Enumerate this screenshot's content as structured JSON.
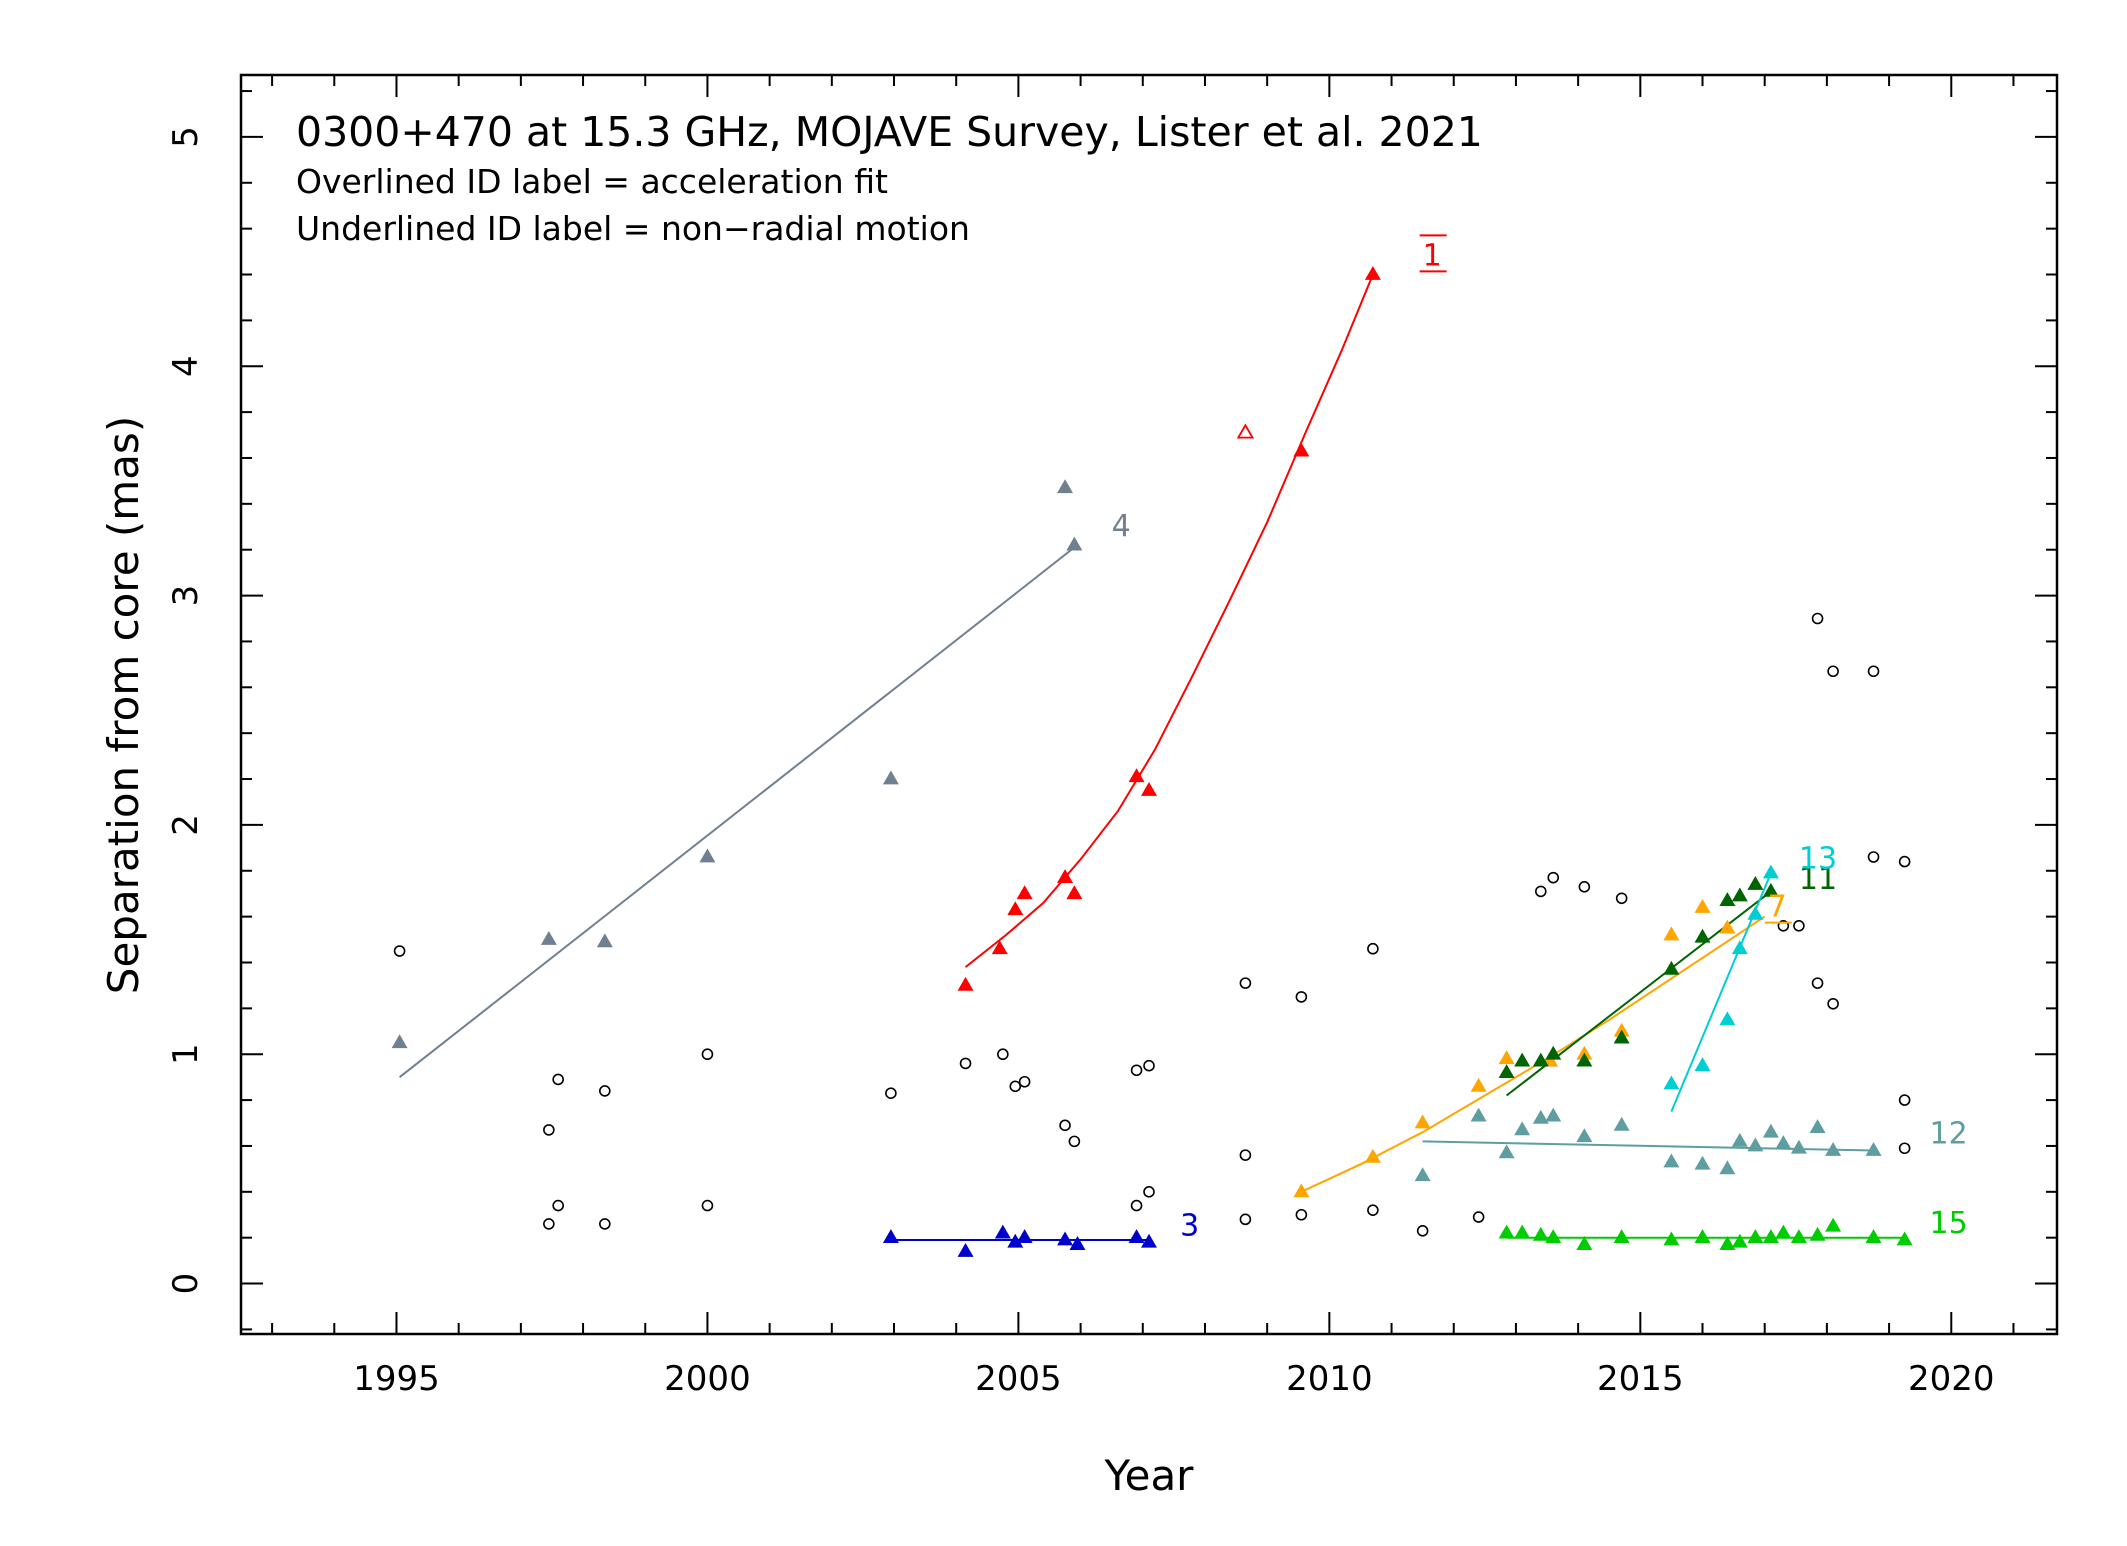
{
  "chart_data": {
    "type": "scatter",
    "title": "0300+470 at 15.3 GHz, MOJAVE Survey, Lister et al. 2021",
    "notes": [
      "Overlined ID label = acceleration fit",
      "Underlined ID label = non−radial motion"
    ],
    "xlabel": "Year",
    "ylabel": "Separation from core (mas)",
    "xlim": [
      1992.5,
      2021.7
    ],
    "ylim": [
      -0.22,
      5.27
    ],
    "xticks": [
      1995,
      2000,
      2005,
      2010,
      2015,
      2020
    ],
    "xtick_labels": [
      "1995",
      "2000",
      "2005",
      "2010",
      "2015",
      "2020"
    ],
    "yticks": [
      0,
      1,
      2,
      3,
      4,
      5
    ],
    "ytick_labels": [
      "0",
      "1",
      "2",
      "3",
      "4",
      "5"
    ],
    "grid": false,
    "series": [
      {
        "name": "1",
        "color": "#ff0000",
        "overline": true,
        "underline": true,
        "label_pos": [
          2011.5,
          4.44
        ],
        "points": [
          [
            2004.15,
            1.3
          ],
          [
            2004.7,
            1.46
          ],
          [
            2004.95,
            1.63
          ],
          [
            2005.1,
            1.7
          ],
          [
            2005.75,
            1.77
          ],
          [
            2005.9,
            1.7
          ],
          [
            2006.9,
            2.21
          ],
          [
            2007.1,
            2.15
          ],
          [
            2009.55,
            3.63
          ],
          [
            2010.7,
            4.4
          ]
        ],
        "open_points": [
          [
            2008.65,
            3.71
          ]
        ],
        "fit": [
          [
            2004.15,
            1.38
          ],
          [
            2004.8,
            1.52
          ],
          [
            2005.4,
            1.66
          ],
          [
            2006.0,
            1.85
          ],
          [
            2006.6,
            2.06
          ],
          [
            2007.2,
            2.33
          ],
          [
            2007.8,
            2.65
          ],
          [
            2008.4,
            2.98
          ],
          [
            2009.0,
            3.32
          ],
          [
            2009.6,
            3.7
          ],
          [
            2010.2,
            4.07
          ],
          [
            2010.7,
            4.4
          ]
        ]
      },
      {
        "name": "3",
        "color": "#0000cc",
        "label_pos": [
          2007.6,
          0.21
        ],
        "points": [
          [
            2002.95,
            0.2
          ],
          [
            2004.15,
            0.14
          ],
          [
            2004.75,
            0.22
          ],
          [
            2004.95,
            0.18
          ],
          [
            2005.1,
            0.2
          ],
          [
            2005.75,
            0.19
          ],
          [
            2005.95,
            0.17
          ],
          [
            2006.9,
            0.2
          ],
          [
            2007.1,
            0.18
          ]
        ],
        "fit": [
          [
            2002.95,
            0.19
          ],
          [
            2007.1,
            0.19
          ]
        ]
      },
      {
        "name": "4",
        "color": "#708090",
        "label_pos": [
          2006.5,
          3.26
        ],
        "points": [
          [
            1995.05,
            1.05
          ],
          [
            1997.45,
            1.5
          ],
          [
            1998.35,
            1.49
          ],
          [
            2000.0,
            1.86
          ],
          [
            2002.95,
            2.2
          ],
          [
            2005.75,
            3.47
          ],
          [
            2005.9,
            3.22
          ]
        ],
        "fit": [
          [
            1995.05,
            0.9
          ],
          [
            2005.9,
            3.21
          ]
        ]
      },
      {
        "name": "7",
        "color": "#ffa500",
        "underline": true,
        "label_pos": [
          2017.05,
          1.6
        ],
        "points": [
          [
            2009.55,
            0.4
          ],
          [
            2010.7,
            0.55
          ],
          [
            2011.5,
            0.7
          ],
          [
            2012.4,
            0.86
          ],
          [
            2012.85,
            0.98
          ],
          [
            2013.55,
            0.97
          ],
          [
            2014.1,
            1.0
          ],
          [
            2014.7,
            1.1
          ],
          [
            2015.5,
            1.52
          ],
          [
            2016.0,
            1.64
          ],
          [
            2016.4,
            1.55
          ]
        ],
        "fit": [
          [
            2009.55,
            0.4
          ],
          [
            2010.5,
            0.52
          ],
          [
            2011.5,
            0.66
          ],
          [
            2012.5,
            0.82
          ],
          [
            2013.5,
            0.98
          ],
          [
            2014.5,
            1.15
          ],
          [
            2015.5,
            1.33
          ],
          [
            2016.5,
            1.51
          ],
          [
            2017.0,
            1.6
          ]
        ]
      },
      {
        "name": "11",
        "color": "#006400",
        "label_pos": [
          2017.55,
          1.72
        ],
        "points": [
          [
            2012.85,
            0.92
          ],
          [
            2013.1,
            0.97
          ],
          [
            2013.4,
            0.97
          ],
          [
            2013.6,
            1.0
          ],
          [
            2014.1,
            0.97
          ],
          [
            2014.7,
            1.07
          ],
          [
            2015.5,
            1.37
          ],
          [
            2016.0,
            1.51
          ],
          [
            2016.4,
            1.67
          ],
          [
            2016.6,
            1.69
          ],
          [
            2016.85,
            1.74
          ],
          [
            2017.1,
            1.71
          ]
        ],
        "fit": [
          [
            2012.85,
            0.82
          ],
          [
            2017.1,
            1.71
          ]
        ]
      },
      {
        "name": "12",
        "color": "#5f9ea0",
        "label_pos": [
          2019.65,
          0.61
        ],
        "points": [
          [
            2011.5,
            0.47
          ],
          [
            2012.4,
            0.73
          ],
          [
            2012.85,
            0.57
          ],
          [
            2013.1,
            0.67
          ],
          [
            2013.4,
            0.72
          ],
          [
            2013.6,
            0.73
          ],
          [
            2014.1,
            0.64
          ],
          [
            2014.7,
            0.69
          ],
          [
            2015.5,
            0.53
          ],
          [
            2016.0,
            0.52
          ],
          [
            2016.4,
            0.5
          ],
          [
            2016.6,
            0.62
          ],
          [
            2016.85,
            0.6
          ],
          [
            2017.1,
            0.66
          ],
          [
            2017.3,
            0.61
          ],
          [
            2017.55,
            0.59
          ],
          [
            2017.85,
            0.68
          ],
          [
            2018.1,
            0.58
          ],
          [
            2018.75,
            0.58
          ]
        ],
        "fit": [
          [
            2011.5,
            0.62
          ],
          [
            2018.75,
            0.58
          ]
        ]
      },
      {
        "name": "13",
        "color": "#00ced1",
        "label_pos": [
          2017.55,
          1.81
        ],
        "points": [
          [
            2015.5,
            0.87
          ],
          [
            2016.0,
            0.95
          ],
          [
            2016.4,
            1.15
          ],
          [
            2016.6,
            1.46
          ],
          [
            2016.85,
            1.61
          ],
          [
            2017.1,
            1.79
          ]
        ],
        "fit": [
          [
            2015.5,
            0.75
          ],
          [
            2017.1,
            1.79
          ]
        ]
      },
      {
        "name": "15",
        "color": "#00cc00",
        "label_pos": [
          2019.65,
          0.22
        ],
        "points": [
          [
            2012.85,
            0.22
          ],
          [
            2013.1,
            0.22
          ],
          [
            2013.4,
            0.21
          ],
          [
            2013.6,
            0.2
          ],
          [
            2014.1,
            0.17
          ],
          [
            2014.7,
            0.2
          ],
          [
            2015.5,
            0.19
          ],
          [
            2016.0,
            0.2
          ],
          [
            2016.4,
            0.17
          ],
          [
            2016.6,
            0.18
          ],
          [
            2016.85,
            0.2
          ],
          [
            2017.1,
            0.2
          ],
          [
            2017.3,
            0.22
          ],
          [
            2017.55,
            0.2
          ],
          [
            2017.85,
            0.21
          ],
          [
            2018.1,
            0.25
          ],
          [
            2018.75,
            0.2
          ],
          [
            2019.25,
            0.19
          ]
        ],
        "fit": [
          [
            2012.85,
            0.2
          ],
          [
            2019.25,
            0.2
          ]
        ]
      }
    ],
    "unassociated": {
      "color": "#000000",
      "points": [
        [
          1995.05,
          1.45
        ],
        [
          1997.45,
          0.67
        ],
        [
          1997.45,
          0.26
        ],
        [
          1997.6,
          0.89
        ],
        [
          1997.6,
          0.34
        ],
        [
          1998.35,
          0.84
        ],
        [
          1998.35,
          0.26
        ],
        [
          2000.0,
          1.0
        ],
        [
          2000.0,
          0.34
        ],
        [
          2002.95,
          0.83
        ],
        [
          2004.15,
          0.96
        ],
        [
          2004.75,
          1.0
        ],
        [
          2004.95,
          0.86
        ],
        [
          2005.1,
          0.88
        ],
        [
          2005.75,
          0.69
        ],
        [
          2005.9,
          0.62
        ],
        [
          2006.9,
          0.93
        ],
        [
          2006.9,
          0.34
        ],
        [
          2007.1,
          0.95
        ],
        [
          2007.1,
          0.4
        ],
        [
          2008.65,
          1.31
        ],
        [
          2008.65,
          0.56
        ],
        [
          2008.65,
          0.28
        ],
        [
          2009.55,
          1.25
        ],
        [
          2009.55,
          0.3
        ],
        [
          2010.7,
          1.46
        ],
        [
          2010.7,
          0.32
        ],
        [
          2011.5,
          0.23
        ],
        [
          2012.4,
          0.29
        ],
        [
          2013.4,
          1.71
        ],
        [
          2013.6,
          1.77
        ],
        [
          2014.1,
          1.73
        ],
        [
          2014.7,
          1.68
        ],
        [
          2017.3,
          1.56
        ],
        [
          2017.55,
          1.56
        ],
        [
          2017.85,
          2.9
        ],
        [
          2017.85,
          1.31
        ],
        [
          2018.1,
          2.67
        ],
        [
          2018.1,
          1.22
        ],
        [
          2018.75,
          2.67
        ],
        [
          2018.75,
          1.86
        ],
        [
          2019.25,
          1.84
        ],
        [
          2019.25,
          0.8
        ],
        [
          2019.25,
          0.59
        ]
      ]
    }
  }
}
